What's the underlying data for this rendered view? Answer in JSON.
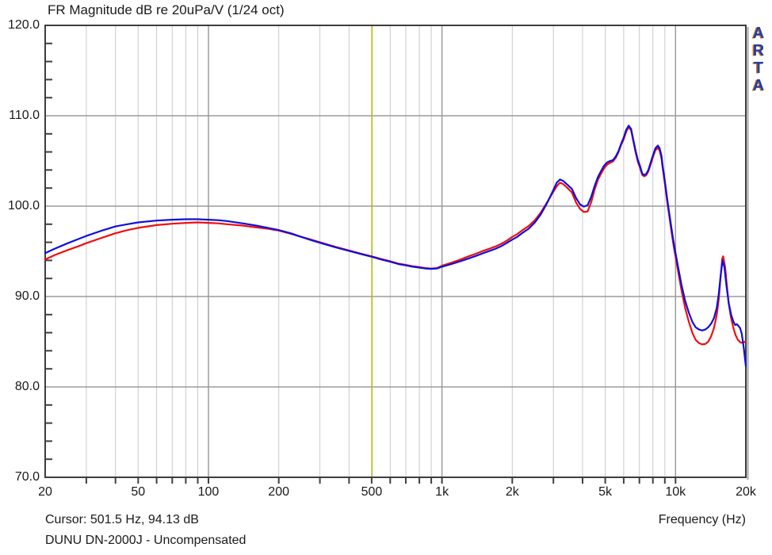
{
  "header": {
    "title": "FR Magnitude dB re 20uPa/V (1/24 oct)"
  },
  "logo": {
    "letters": [
      "A",
      "R",
      "T",
      "A"
    ]
  },
  "footer": {
    "cursor_text": "Cursor: 501.5 Hz, 94.13 dB",
    "measurement_label": "DUNU DN-2000J - Uncompensated"
  },
  "colors": {
    "grid_minor": "#c9c9c9",
    "grid_decade": "#9b9b9b",
    "grid_major_h": "#9b9b9b",
    "border": "#3d3d3d",
    "border_shadow": "#a6a6a6",
    "tick": "#404040",
    "text": "#1a1a1a",
    "cursor_line": "#b9b900",
    "logo_blue": "#1d3fa8",
    "logo_orange": "#d4721c"
  },
  "chart_data": {
    "type": "line",
    "title": "FR Magnitude dB re 20uPa/V (1/24 oct)",
    "xlabel": "Frequency (Hz)",
    "ylabel": "dB re 20uPa/V",
    "x_scale": "log",
    "xlim": [
      20,
      20000
    ],
    "ylim": [
      70,
      120
    ],
    "grid": true,
    "legend_position": "none",
    "y_major_ticks": [
      {
        "v": 120,
        "label": "120.0"
      },
      {
        "v": 110,
        "label": "110.0"
      },
      {
        "v": 100,
        "label": "100.0"
      },
      {
        "v": 90,
        "label": "90.0"
      },
      {
        "v": 80,
        "label": "80.0"
      },
      {
        "v": 70,
        "label": "70.0"
      }
    ],
    "y_minor_step": 2,
    "x_major_ticks": [
      {
        "f": 20,
        "label": "20"
      },
      {
        "f": 50,
        "label": "50"
      },
      {
        "f": 100,
        "label": "100"
      },
      {
        "f": 200,
        "label": "200"
      },
      {
        "f": 500,
        "label": "500"
      },
      {
        "f": 1000,
        "label": "1k"
      },
      {
        "f": 2000,
        "label": "2k"
      },
      {
        "f": 5000,
        "label": "5k"
      },
      {
        "f": 10000,
        "label": "10k"
      },
      {
        "f": 20000,
        "label": "20k"
      }
    ],
    "x_gridlines": [
      30,
      40,
      50,
      60,
      70,
      80,
      90,
      100,
      200,
      300,
      400,
      500,
      600,
      700,
      800,
      900,
      1000,
      2000,
      3000,
      4000,
      5000,
      6000,
      7000,
      8000,
      9000,
      10000
    ],
    "x_decade_lines": [
      100,
      1000,
      10000
    ],
    "cursor": {
      "freq": 501.5,
      "db": 94.13
    },
    "series": [
      {
        "name": "red-channel",
        "color": "#ee0f0f",
        "points": [
          [
            20,
            94.1
          ],
          [
            22,
            94.6
          ],
          [
            25,
            95.15
          ],
          [
            28,
            95.6
          ],
          [
            30,
            95.9
          ],
          [
            35,
            96.5
          ],
          [
            40,
            97.0
          ],
          [
            45,
            97.35
          ],
          [
            50,
            97.6
          ],
          [
            60,
            97.9
          ],
          [
            70,
            98.05
          ],
          [
            80,
            98.15
          ],
          [
            90,
            98.2
          ],
          [
            100,
            98.15
          ],
          [
            110,
            98.1
          ],
          [
            120,
            98.0
          ],
          [
            140,
            97.85
          ],
          [
            160,
            97.65
          ],
          [
            180,
            97.5
          ],
          [
            200,
            97.3
          ],
          [
            225,
            96.95
          ],
          [
            250,
            96.6
          ],
          [
            275,
            96.3
          ],
          [
            300,
            96.0
          ],
          [
            350,
            95.5
          ],
          [
            400,
            95.1
          ],
          [
            450,
            94.75
          ],
          [
            500,
            94.45
          ],
          [
            550,
            94.15
          ],
          [
            600,
            93.9
          ],
          [
            650,
            93.65
          ],
          [
            700,
            93.5
          ],
          [
            750,
            93.35
          ],
          [
            800,
            93.25
          ],
          [
            850,
            93.15
          ],
          [
            900,
            93.1
          ],
          [
            950,
            93.15
          ],
          [
            1000,
            93.4
          ],
          [
            1100,
            93.75
          ],
          [
            1200,
            94.1
          ],
          [
            1300,
            94.45
          ],
          [
            1400,
            94.75
          ],
          [
            1500,
            95.05
          ],
          [
            1600,
            95.3
          ],
          [
            1700,
            95.55
          ],
          [
            1800,
            95.85
          ],
          [
            1900,
            96.2
          ],
          [
            2000,
            96.6
          ],
          [
            2100,
            96.9
          ],
          [
            2200,
            97.3
          ],
          [
            2350,
            97.8
          ],
          [
            2500,
            98.45
          ],
          [
            2650,
            99.3
          ],
          [
            2800,
            100.3
          ],
          [
            2950,
            101.3
          ],
          [
            3100,
            102.2
          ],
          [
            3200,
            102.6
          ],
          [
            3300,
            102.45
          ],
          [
            3450,
            102.0
          ],
          [
            3600,
            101.5
          ],
          [
            3750,
            100.4
          ],
          [
            3900,
            99.7
          ],
          [
            4050,
            99.35
          ],
          [
            4200,
            99.4
          ],
          [
            4350,
            100.4
          ],
          [
            4500,
            101.8
          ],
          [
            4650,
            102.9
          ],
          [
            4800,
            103.6
          ],
          [
            4950,
            104.2
          ],
          [
            5100,
            104.6
          ],
          [
            5250,
            104.8
          ],
          [
            5400,
            104.95
          ],
          [
            5550,
            105.35
          ],
          [
            5700,
            106.0
          ],
          [
            5850,
            106.8
          ],
          [
            6000,
            107.4
          ],
          [
            6150,
            108.25
          ],
          [
            6300,
            108.75
          ],
          [
            6450,
            108.4
          ],
          [
            6600,
            107.15
          ],
          [
            6750,
            105.9
          ],
          [
            6900,
            104.9
          ],
          [
            7050,
            104.2
          ],
          [
            7200,
            103.45
          ],
          [
            7350,
            103.3
          ],
          [
            7500,
            103.45
          ],
          [
            7650,
            103.85
          ],
          [
            7800,
            104.5
          ],
          [
            8000,
            105.4
          ],
          [
            8200,
            106.2
          ],
          [
            8400,
            106.45
          ],
          [
            8550,
            106.15
          ],
          [
            8700,
            105.3
          ],
          [
            8800,
            104.3
          ],
          [
            9000,
            102.5
          ],
          [
            9200,
            100.6
          ],
          [
            9400,
            98.9
          ],
          [
            9600,
            97.2
          ],
          [
            9800,
            95.7
          ],
          [
            10000,
            94.4
          ],
          [
            10300,
            92.5
          ],
          [
            10600,
            90.7
          ],
          [
            11000,
            88.7
          ],
          [
            11400,
            87.2
          ],
          [
            11800,
            86.0
          ],
          [
            12200,
            85.2
          ],
          [
            12600,
            84.85
          ],
          [
            13000,
            84.7
          ],
          [
            13400,
            84.75
          ],
          [
            13800,
            85.0
          ],
          [
            14200,
            85.6
          ],
          [
            14600,
            86.5
          ],
          [
            15000,
            87.9
          ],
          [
            15300,
            89.6
          ],
          [
            15600,
            92.2
          ],
          [
            15850,
            94.2
          ],
          [
            16000,
            94.45
          ],
          [
            16300,
            93.3
          ],
          [
            16600,
            91.1
          ],
          [
            16900,
            89.2
          ],
          [
            17300,
            87.6
          ],
          [
            17700,
            86.5
          ],
          [
            18100,
            85.7
          ],
          [
            18500,
            85.2
          ],
          [
            19000,
            84.9
          ],
          [
            19500,
            84.9
          ],
          [
            20000,
            85.05
          ]
        ]
      },
      {
        "name": "blue-channel",
        "color": "#100fdd",
        "points": [
          [
            20,
            94.8
          ],
          [
            22,
            95.3
          ],
          [
            25,
            95.9
          ],
          [
            28,
            96.4
          ],
          [
            30,
            96.7
          ],
          [
            35,
            97.3
          ],
          [
            40,
            97.75
          ],
          [
            45,
            98.0
          ],
          [
            50,
            98.2
          ],
          [
            60,
            98.4
          ],
          [
            70,
            98.5
          ],
          [
            80,
            98.55
          ],
          [
            90,
            98.55
          ],
          [
            100,
            98.5
          ],
          [
            110,
            98.45
          ],
          [
            120,
            98.35
          ],
          [
            140,
            98.1
          ],
          [
            160,
            97.85
          ],
          [
            180,
            97.6
          ],
          [
            200,
            97.35
          ],
          [
            225,
            97.0
          ],
          [
            250,
            96.6
          ],
          [
            275,
            96.25
          ],
          [
            300,
            95.95
          ],
          [
            350,
            95.45
          ],
          [
            400,
            95.05
          ],
          [
            450,
            94.7
          ],
          [
            500,
            94.4
          ],
          [
            550,
            94.1
          ],
          [
            600,
            93.85
          ],
          [
            650,
            93.6
          ],
          [
            700,
            93.45
          ],
          [
            750,
            93.3
          ],
          [
            800,
            93.2
          ],
          [
            850,
            93.1
          ],
          [
            900,
            93.05
          ],
          [
            950,
            93.1
          ],
          [
            1000,
            93.3
          ],
          [
            1100,
            93.6
          ],
          [
            1200,
            93.9
          ],
          [
            1300,
            94.2
          ],
          [
            1400,
            94.5
          ],
          [
            1500,
            94.8
          ],
          [
            1600,
            95.05
          ],
          [
            1700,
            95.3
          ],
          [
            1800,
            95.6
          ],
          [
            1900,
            95.95
          ],
          [
            2000,
            96.3
          ],
          [
            2100,
            96.6
          ],
          [
            2200,
            97.0
          ],
          [
            2350,
            97.5
          ],
          [
            2500,
            98.2
          ],
          [
            2650,
            99.1
          ],
          [
            2800,
            100.2
          ],
          [
            2950,
            101.4
          ],
          [
            3100,
            102.6
          ],
          [
            3200,
            102.95
          ],
          [
            3300,
            102.8
          ],
          [
            3450,
            102.35
          ],
          [
            3600,
            101.9
          ],
          [
            3750,
            100.9
          ],
          [
            3900,
            100.2
          ],
          [
            4050,
            99.95
          ],
          [
            4200,
            100.1
          ],
          [
            4350,
            101.0
          ],
          [
            4500,
            102.2
          ],
          [
            4650,
            103.2
          ],
          [
            4800,
            103.9
          ],
          [
            4950,
            104.5
          ],
          [
            5100,
            104.85
          ],
          [
            5250,
            105.0
          ],
          [
            5400,
            105.1
          ],
          [
            5550,
            105.5
          ],
          [
            5700,
            106.1
          ],
          [
            5850,
            106.9
          ],
          [
            6000,
            107.6
          ],
          [
            6150,
            108.45
          ],
          [
            6300,
            108.9
          ],
          [
            6450,
            108.55
          ],
          [
            6600,
            107.3
          ],
          [
            6750,
            106.1
          ],
          [
            6900,
            105.1
          ],
          [
            7050,
            104.4
          ],
          [
            7200,
            103.6
          ],
          [
            7350,
            103.45
          ],
          [
            7500,
            103.6
          ],
          [
            7650,
            104.0
          ],
          [
            7800,
            104.7
          ],
          [
            8000,
            105.6
          ],
          [
            8200,
            106.4
          ],
          [
            8400,
            106.7
          ],
          [
            8550,
            106.4
          ],
          [
            8700,
            105.6
          ],
          [
            8800,
            104.6
          ],
          [
            9000,
            102.8
          ],
          [
            9200,
            100.9
          ],
          [
            9400,
            99.2
          ],
          [
            9600,
            97.6
          ],
          [
            9800,
            96.1
          ],
          [
            10000,
            94.8
          ],
          [
            10300,
            93.0
          ],
          [
            10600,
            91.3
          ],
          [
            11000,
            89.5
          ],
          [
            11400,
            88.2
          ],
          [
            11800,
            87.2
          ],
          [
            12200,
            86.6
          ],
          [
            12600,
            86.35
          ],
          [
            13000,
            86.25
          ],
          [
            13400,
            86.35
          ],
          [
            13800,
            86.6
          ],
          [
            14200,
            87.0
          ],
          [
            14600,
            87.6
          ],
          [
            15000,
            88.7
          ],
          [
            15300,
            90.2
          ],
          [
            15600,
            92.3
          ],
          [
            15900,
            94.0
          ],
          [
            16200,
            93.2
          ],
          [
            16500,
            91.3
          ],
          [
            16900,
            89.3
          ],
          [
            17300,
            88.0
          ],
          [
            17700,
            87.2
          ],
          [
            18000,
            86.85
          ],
          [
            18300,
            86.95
          ],
          [
            18600,
            86.75
          ],
          [
            18900,
            86.5
          ],
          [
            19200,
            85.9
          ],
          [
            19600,
            84.3
          ],
          [
            20000,
            82.3
          ]
        ]
      }
    ]
  }
}
